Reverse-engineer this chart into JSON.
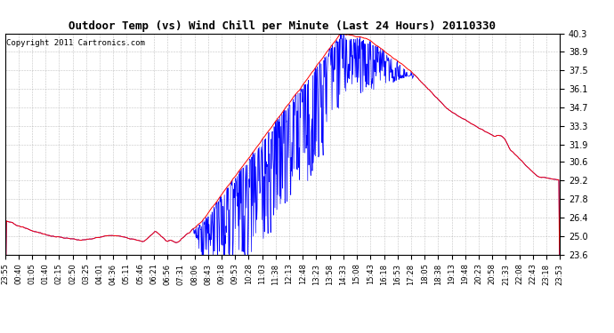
{
  "title": "Outdoor Temp (vs) Wind Chill per Minute (Last 24 Hours) 20110330",
  "copyright_text": "Copyright 2011 Cartronics.com",
  "y_ticks": [
    23.6,
    25.0,
    26.4,
    27.8,
    29.2,
    30.6,
    31.9,
    33.3,
    34.7,
    36.1,
    37.5,
    38.9,
    40.3
  ],
  "x_labels": [
    "23:55",
    "00:40",
    "01:05",
    "01:40",
    "02:15",
    "02:50",
    "03:25",
    "04:01",
    "04:36",
    "05:11",
    "05:46",
    "06:21",
    "06:56",
    "07:31",
    "08:06",
    "08:43",
    "09:18",
    "09:53",
    "10:28",
    "11:03",
    "11:38",
    "12:13",
    "12:48",
    "13:23",
    "13:58",
    "14:33",
    "15:08",
    "15:43",
    "16:18",
    "16:53",
    "17:28",
    "18:05",
    "18:38",
    "19:13",
    "19:48",
    "20:23",
    "20:58",
    "21:33",
    "22:08",
    "22:43",
    "23:18",
    "23:53"
  ],
  "ymin": 23.6,
  "ymax": 40.3,
  "red_color": "#FF0000",
  "blue_color": "#0000FF",
  "bg_color": "#FFFFFF",
  "grid_color": "#AAAAAA",
  "title_fontsize": 9,
  "copyright_fontsize": 6.5
}
